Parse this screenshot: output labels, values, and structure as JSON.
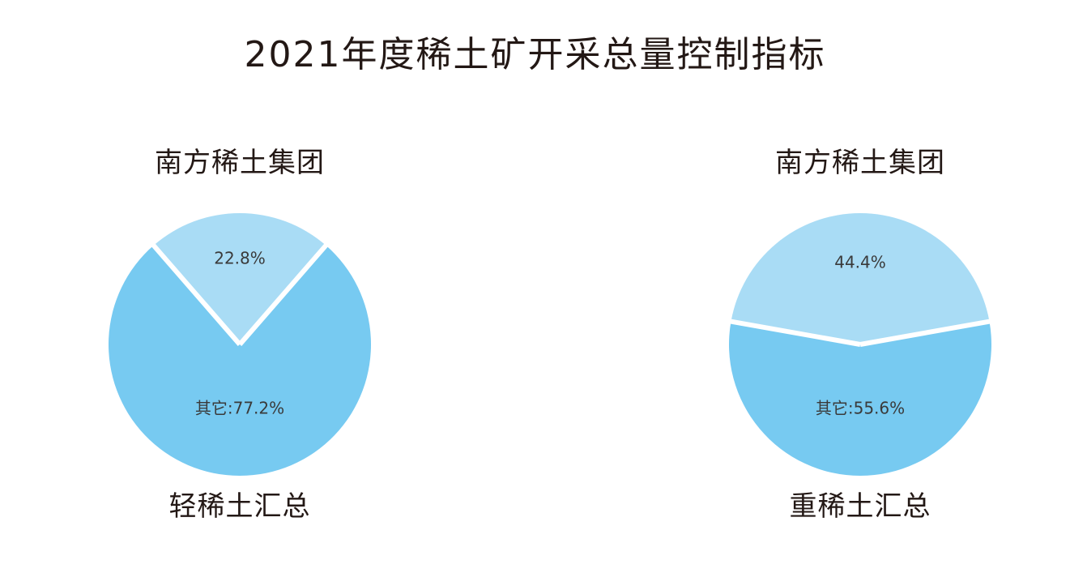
{
  "title": "2021年度稀土矿开采总量控制指标",
  "colors": {
    "nanfang": "#a9dcf5",
    "other": "#77caf1",
    "separator": "#ffffff",
    "text": "#231815"
  },
  "chart_data": [
    {
      "type": "pie",
      "title": "轻稀土汇总",
      "slices": [
        {
          "name": "南方稀土集团",
          "value": 22.8,
          "label": "22.8%"
        },
        {
          "name": "其它",
          "value": 77.2,
          "label": "其它:77.2%"
        }
      ]
    },
    {
      "type": "pie",
      "title": "重稀土汇总",
      "slices": [
        {
          "name": "南方稀土集团",
          "value": 44.4,
          "label": "44.4%"
        },
        {
          "name": "其它",
          "value": 55.6,
          "label": "其它:55.6%"
        }
      ]
    }
  ]
}
